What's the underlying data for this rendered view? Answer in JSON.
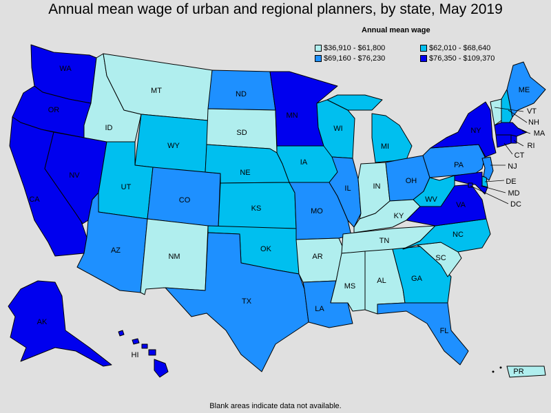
{
  "title": "Annual mean wage of urban and regional planners, by state, May 2019",
  "legend": {
    "title": "Annual mean wage",
    "items": [
      {
        "range": "$36,910 - $61,800",
        "color": "#b0eeee"
      },
      {
        "range": "$62,010 - $68,640",
        "color": "#00bfef"
      },
      {
        "range": "$69,160 - $76,230",
        "color": "#1e90ff"
      },
      {
        "range": "$76,350 - $109,370",
        "color": "#0000ee"
      }
    ]
  },
  "footnote": "Blank areas indicate data not available.",
  "states": [
    {
      "abbr": "WA",
      "tier": 3
    },
    {
      "abbr": "OR",
      "tier": 3
    },
    {
      "abbr": "CA",
      "tier": 3
    },
    {
      "abbr": "NV",
      "tier": 3
    },
    {
      "abbr": "ID",
      "tier": 0
    },
    {
      "abbr": "MT",
      "tier": 0
    },
    {
      "abbr": "WY",
      "tier": 1
    },
    {
      "abbr": "UT",
      "tier": 1
    },
    {
      "abbr": "AZ",
      "tier": 2
    },
    {
      "abbr": "CO",
      "tier": 2
    },
    {
      "abbr": "NM",
      "tier": 0
    },
    {
      "abbr": "ND",
      "tier": 2
    },
    {
      "abbr": "SD",
      "tier": 0
    },
    {
      "abbr": "NE",
      "tier": 1
    },
    {
      "abbr": "KS",
      "tier": 1
    },
    {
      "abbr": "OK",
      "tier": 1
    },
    {
      "abbr": "TX",
      "tier": 2
    },
    {
      "abbr": "MN",
      "tier": 3
    },
    {
      "abbr": "IA",
      "tier": 1
    },
    {
      "abbr": "MO",
      "tier": 2
    },
    {
      "abbr": "AR",
      "tier": 0
    },
    {
      "abbr": "LA",
      "tier": 2
    },
    {
      "abbr": "WI",
      "tier": 1
    },
    {
      "abbr": "IL",
      "tier": 2
    },
    {
      "abbr": "MI",
      "tier": 1
    },
    {
      "abbr": "IN",
      "tier": 0
    },
    {
      "abbr": "OH",
      "tier": 2
    },
    {
      "abbr": "KY",
      "tier": 0
    },
    {
      "abbr": "TN",
      "tier": 0
    },
    {
      "abbr": "MS",
      "tier": 0
    },
    {
      "abbr": "AL",
      "tier": 0
    },
    {
      "abbr": "GA",
      "tier": 1
    },
    {
      "abbr": "FL",
      "tier": 2
    },
    {
      "abbr": "SC",
      "tier": 0
    },
    {
      "abbr": "NC",
      "tier": 1
    },
    {
      "abbr": "VA",
      "tier": 3
    },
    {
      "abbr": "WV",
      "tier": 1
    },
    {
      "abbr": "PA",
      "tier": 2
    },
    {
      "abbr": "NY",
      "tier": 3
    },
    {
      "abbr": "VT",
      "tier": 0
    },
    {
      "abbr": "NH",
      "tier": 1
    },
    {
      "abbr": "ME",
      "tier": 2
    },
    {
      "abbr": "MA",
      "tier": 3
    },
    {
      "abbr": "RI",
      "tier": 3
    },
    {
      "abbr": "CT",
      "tier": 3
    },
    {
      "abbr": "NJ",
      "tier": 2
    },
    {
      "abbr": "DE",
      "tier": 1
    },
    {
      "abbr": "MD",
      "tier": 3
    },
    {
      "abbr": "DC",
      "tier": 3
    },
    {
      "abbr": "AK",
      "tier": 3
    },
    {
      "abbr": "HI",
      "tier": 3
    },
    {
      "abbr": "PR",
      "tier": 0
    }
  ]
}
